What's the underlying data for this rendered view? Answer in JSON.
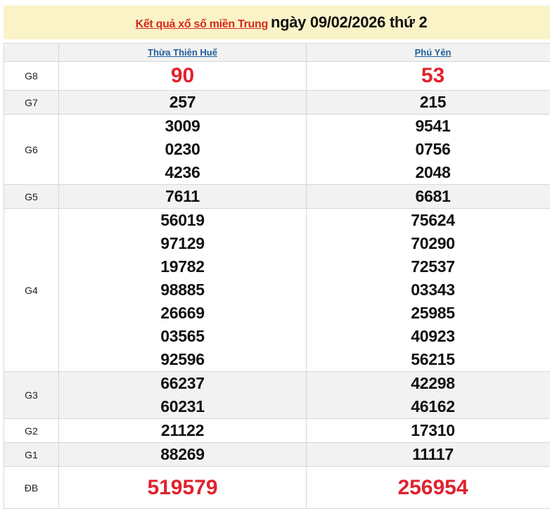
{
  "title": {
    "link": "Kết quả xổ số miền Trung",
    "date": "ngày 09/02/2026 thứ 2"
  },
  "provinces": [
    "Thừa Thiên Huế",
    "Phú Yên"
  ],
  "colors": {
    "red": "#e0222e",
    "link": "#1f5f99",
    "title_bg": "#fbf3c8"
  },
  "prizes": [
    {
      "label": "G8",
      "a": [
        "90"
      ],
      "b": [
        "53"
      ],
      "highlight": true
    },
    {
      "label": "G7",
      "a": [
        "257"
      ],
      "b": [
        "215"
      ]
    },
    {
      "label": "G6",
      "a": [
        "3009",
        "0230",
        "4236"
      ],
      "b": [
        "9541",
        "0756",
        "2048"
      ]
    },
    {
      "label": "G5",
      "a": [
        "7611"
      ],
      "b": [
        "6681"
      ]
    },
    {
      "label": "G4",
      "a": [
        "56019",
        "97129",
        "19782",
        "98885",
        "26669",
        "03565",
        "92596"
      ],
      "b": [
        "75624",
        "70290",
        "72537",
        "03343",
        "25985",
        "40923",
        "56215"
      ]
    },
    {
      "label": "G3",
      "a": [
        "66237",
        "60231"
      ],
      "b": [
        "42298",
        "46162"
      ]
    },
    {
      "label": "G2",
      "a": [
        "21122"
      ],
      "b": [
        "17310"
      ]
    },
    {
      "label": "G1",
      "a": [
        "88269"
      ],
      "b": [
        "11117"
      ]
    },
    {
      "label": "ĐB",
      "a": [
        "519579"
      ],
      "b": [
        "256954"
      ],
      "highlight": true
    }
  ]
}
